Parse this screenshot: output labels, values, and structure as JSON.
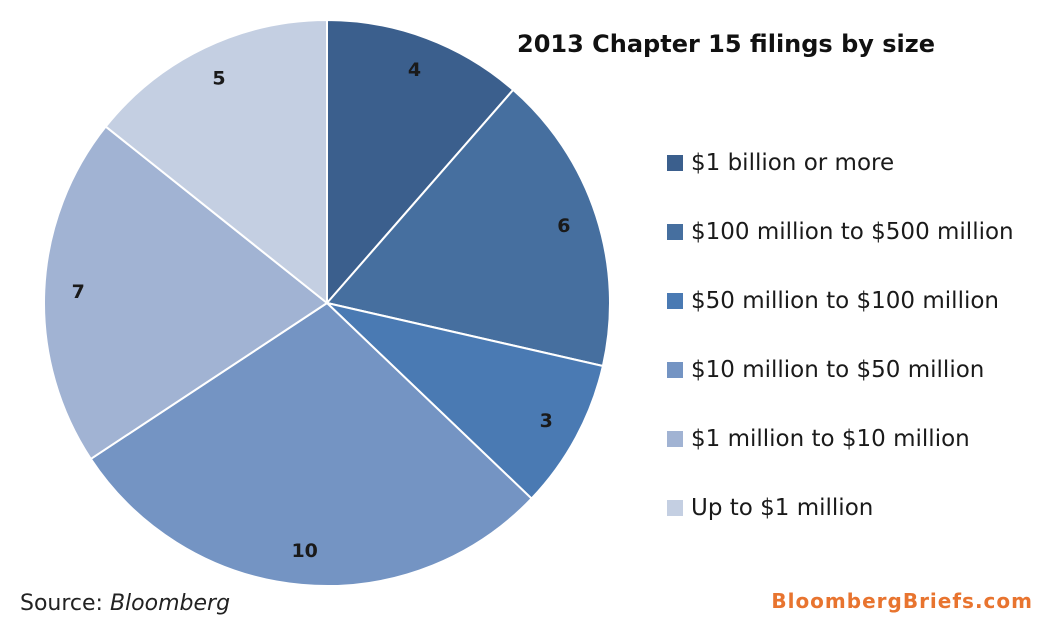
{
  "chart_data": {
    "type": "pie",
    "title": "2013 Chapter 15 filings by size",
    "categories": [
      "$1 billion or more",
      "$100 million to $500 million",
      "$50 million to $100 million",
      "$10 million to $50 million",
      "$1 million to $10 million",
      "Up to $1 million"
    ],
    "values": [
      4,
      6,
      3,
      10,
      7,
      5
    ],
    "colors": [
      "#3b5f8d",
      "#466f9f",
      "#4a7ab3",
      "#7494c3",
      "#a1b3d3",
      "#c4cfe2"
    ],
    "legend_position": "right"
  },
  "source": {
    "prefix": "Source: ",
    "name": "Bloomberg"
  },
  "brand": "BloombergBriefs.com"
}
